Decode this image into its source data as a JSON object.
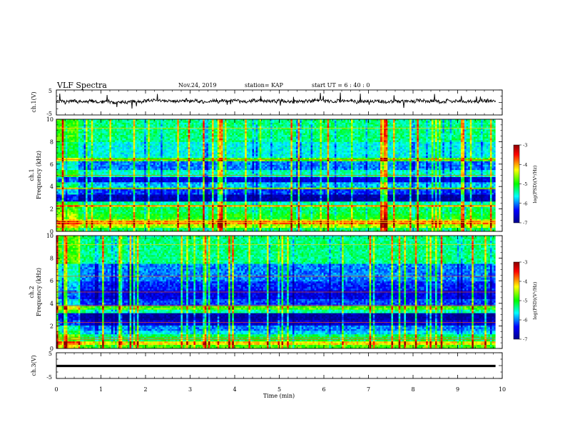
{
  "header": {
    "title": "VLF Spectra",
    "date": "Nov.24, 2019",
    "station": "station= KAP",
    "start": "start  UT =   6  : 40 : 0"
  },
  "chart_data": [
    {
      "type": "line",
      "panel": "ch1-voltage",
      "ylabel": "ch.1(V)",
      "ylim": [
        -5,
        5
      ],
      "yticks": [
        "5",
        "-5"
      ],
      "xlim": [
        0,
        10
      ],
      "x_extent": [
        0,
        9.85
      ],
      "baseline": 0.5,
      "noise_range": [
        -1.5,
        1.5
      ],
      "color": "#000000"
    },
    {
      "type": "heatmap",
      "panel": "ch1-spectrogram",
      "ylabel": "ch.1\nFrequency  (kHz)",
      "ylim": [
        0,
        10
      ],
      "yticks": [
        "0",
        "2",
        "4",
        "6",
        "8",
        "10"
      ],
      "xlim": [
        0,
        10
      ],
      "x_extent": [
        0,
        9.85
      ],
      "bands_kHz": [
        {
          "from": 0.0,
          "to": 0.3,
          "level": 0.45
        },
        {
          "from": 0.3,
          "to": 0.6,
          "level": 0.62
        },
        {
          "from": 0.6,
          "to": 0.9,
          "level": 0.78
        },
        {
          "from": 0.9,
          "to": 1.1,
          "level": 0.6
        },
        {
          "from": 1.1,
          "to": 1.6,
          "level": 0.5
        },
        {
          "from": 1.6,
          "to": 2.2,
          "level": 0.45
        },
        {
          "from": 2.2,
          "to": 2.4,
          "level": 0.72
        },
        {
          "from": 2.4,
          "to": 2.7,
          "level": 0.4
        },
        {
          "from": 2.7,
          "to": 3.3,
          "level": 0.05
        },
        {
          "from": 3.3,
          "to": 3.7,
          "level": 0.2
        },
        {
          "from": 3.7,
          "to": 3.9,
          "level": 0.55
        },
        {
          "from": 3.9,
          "to": 4.4,
          "level": 0.3
        },
        {
          "from": 4.4,
          "to": 4.9,
          "level": 0.12
        },
        {
          "from": 4.9,
          "to": 5.4,
          "level": 0.38
        },
        {
          "from": 5.4,
          "to": 6.3,
          "level": 0.25
        },
        {
          "from": 6.3,
          "to": 6.5,
          "level": 0.55
        },
        {
          "from": 6.5,
          "to": 8.0,
          "level": 0.35
        },
        {
          "from": 8.0,
          "to": 10.0,
          "level": 0.42
        }
      ],
      "colorbar": {
        "label": "log(PSD)(V²/Hz)",
        "range": [
          -7,
          -3
        ],
        "ticks": [
          "-3",
          "-4",
          "-5",
          "-6",
          "-7"
        ],
        "colors": [
          "#8b0000",
          "#ff0000",
          "#ffff00",
          "#00ff00",
          "#00ffff",
          "#0000ff",
          "#00008b"
        ]
      }
    },
    {
      "type": "heatmap",
      "panel": "ch2-spectrogram",
      "ylabel": "ch.2\nFrequency  (kHz)",
      "ylim": [
        0,
        10
      ],
      "yticks": [
        "0",
        "2",
        "4",
        "6",
        "8",
        "10"
      ],
      "xlim": [
        0,
        10
      ],
      "x_extent": [
        0,
        9.85
      ],
      "bands_kHz": [
        {
          "from": 0.0,
          "to": 0.3,
          "level": 0.55
        },
        {
          "from": 0.3,
          "to": 0.6,
          "level": 0.7
        },
        {
          "from": 0.6,
          "to": 1.2,
          "level": 0.45
        },
        {
          "from": 1.2,
          "to": 1.6,
          "level": 0.32
        },
        {
          "from": 1.6,
          "to": 2.0,
          "level": 0.25
        },
        {
          "from": 2.0,
          "to": 2.5,
          "level": 0.1
        },
        {
          "from": 2.5,
          "to": 3.2,
          "level": 0.03
        },
        {
          "from": 3.2,
          "to": 3.5,
          "level": 0.4
        },
        {
          "from": 3.5,
          "to": 3.8,
          "level": 0.55
        },
        {
          "from": 3.8,
          "to": 4.4,
          "level": 0.2
        },
        {
          "from": 4.4,
          "to": 5.2,
          "level": 0.12
        },
        {
          "from": 5.2,
          "to": 6.0,
          "level": 0.18
        },
        {
          "from": 6.0,
          "to": 7.5,
          "level": 0.25
        },
        {
          "from": 7.5,
          "to": 10.0,
          "level": 0.42
        }
      ],
      "colorbar": {
        "label": "log(PSD)(V²/Hz)",
        "range": [
          -7,
          -3
        ],
        "ticks": [
          "-3",
          "-4",
          "-5",
          "-6",
          "-7"
        ],
        "colors": [
          "#8b0000",
          "#ff0000",
          "#ffff00",
          "#00ff00",
          "#00ffff",
          "#0000ff",
          "#00008b"
        ]
      }
    },
    {
      "type": "line",
      "panel": "ch3-voltage",
      "ylabel": "ch.3(V)",
      "ylim": [
        -5,
        5
      ],
      "yticks": [
        "5",
        "-5"
      ],
      "xlim": [
        0,
        10
      ],
      "x_extent": [
        0,
        9.85
      ],
      "baseline": 0.0,
      "color": "#000000"
    }
  ],
  "xaxis": {
    "label": "Time  (min)",
    "ticks": [
      "0",
      "1",
      "2",
      "3",
      "4",
      "5",
      "6",
      "7",
      "8",
      "9",
      "10"
    ]
  }
}
